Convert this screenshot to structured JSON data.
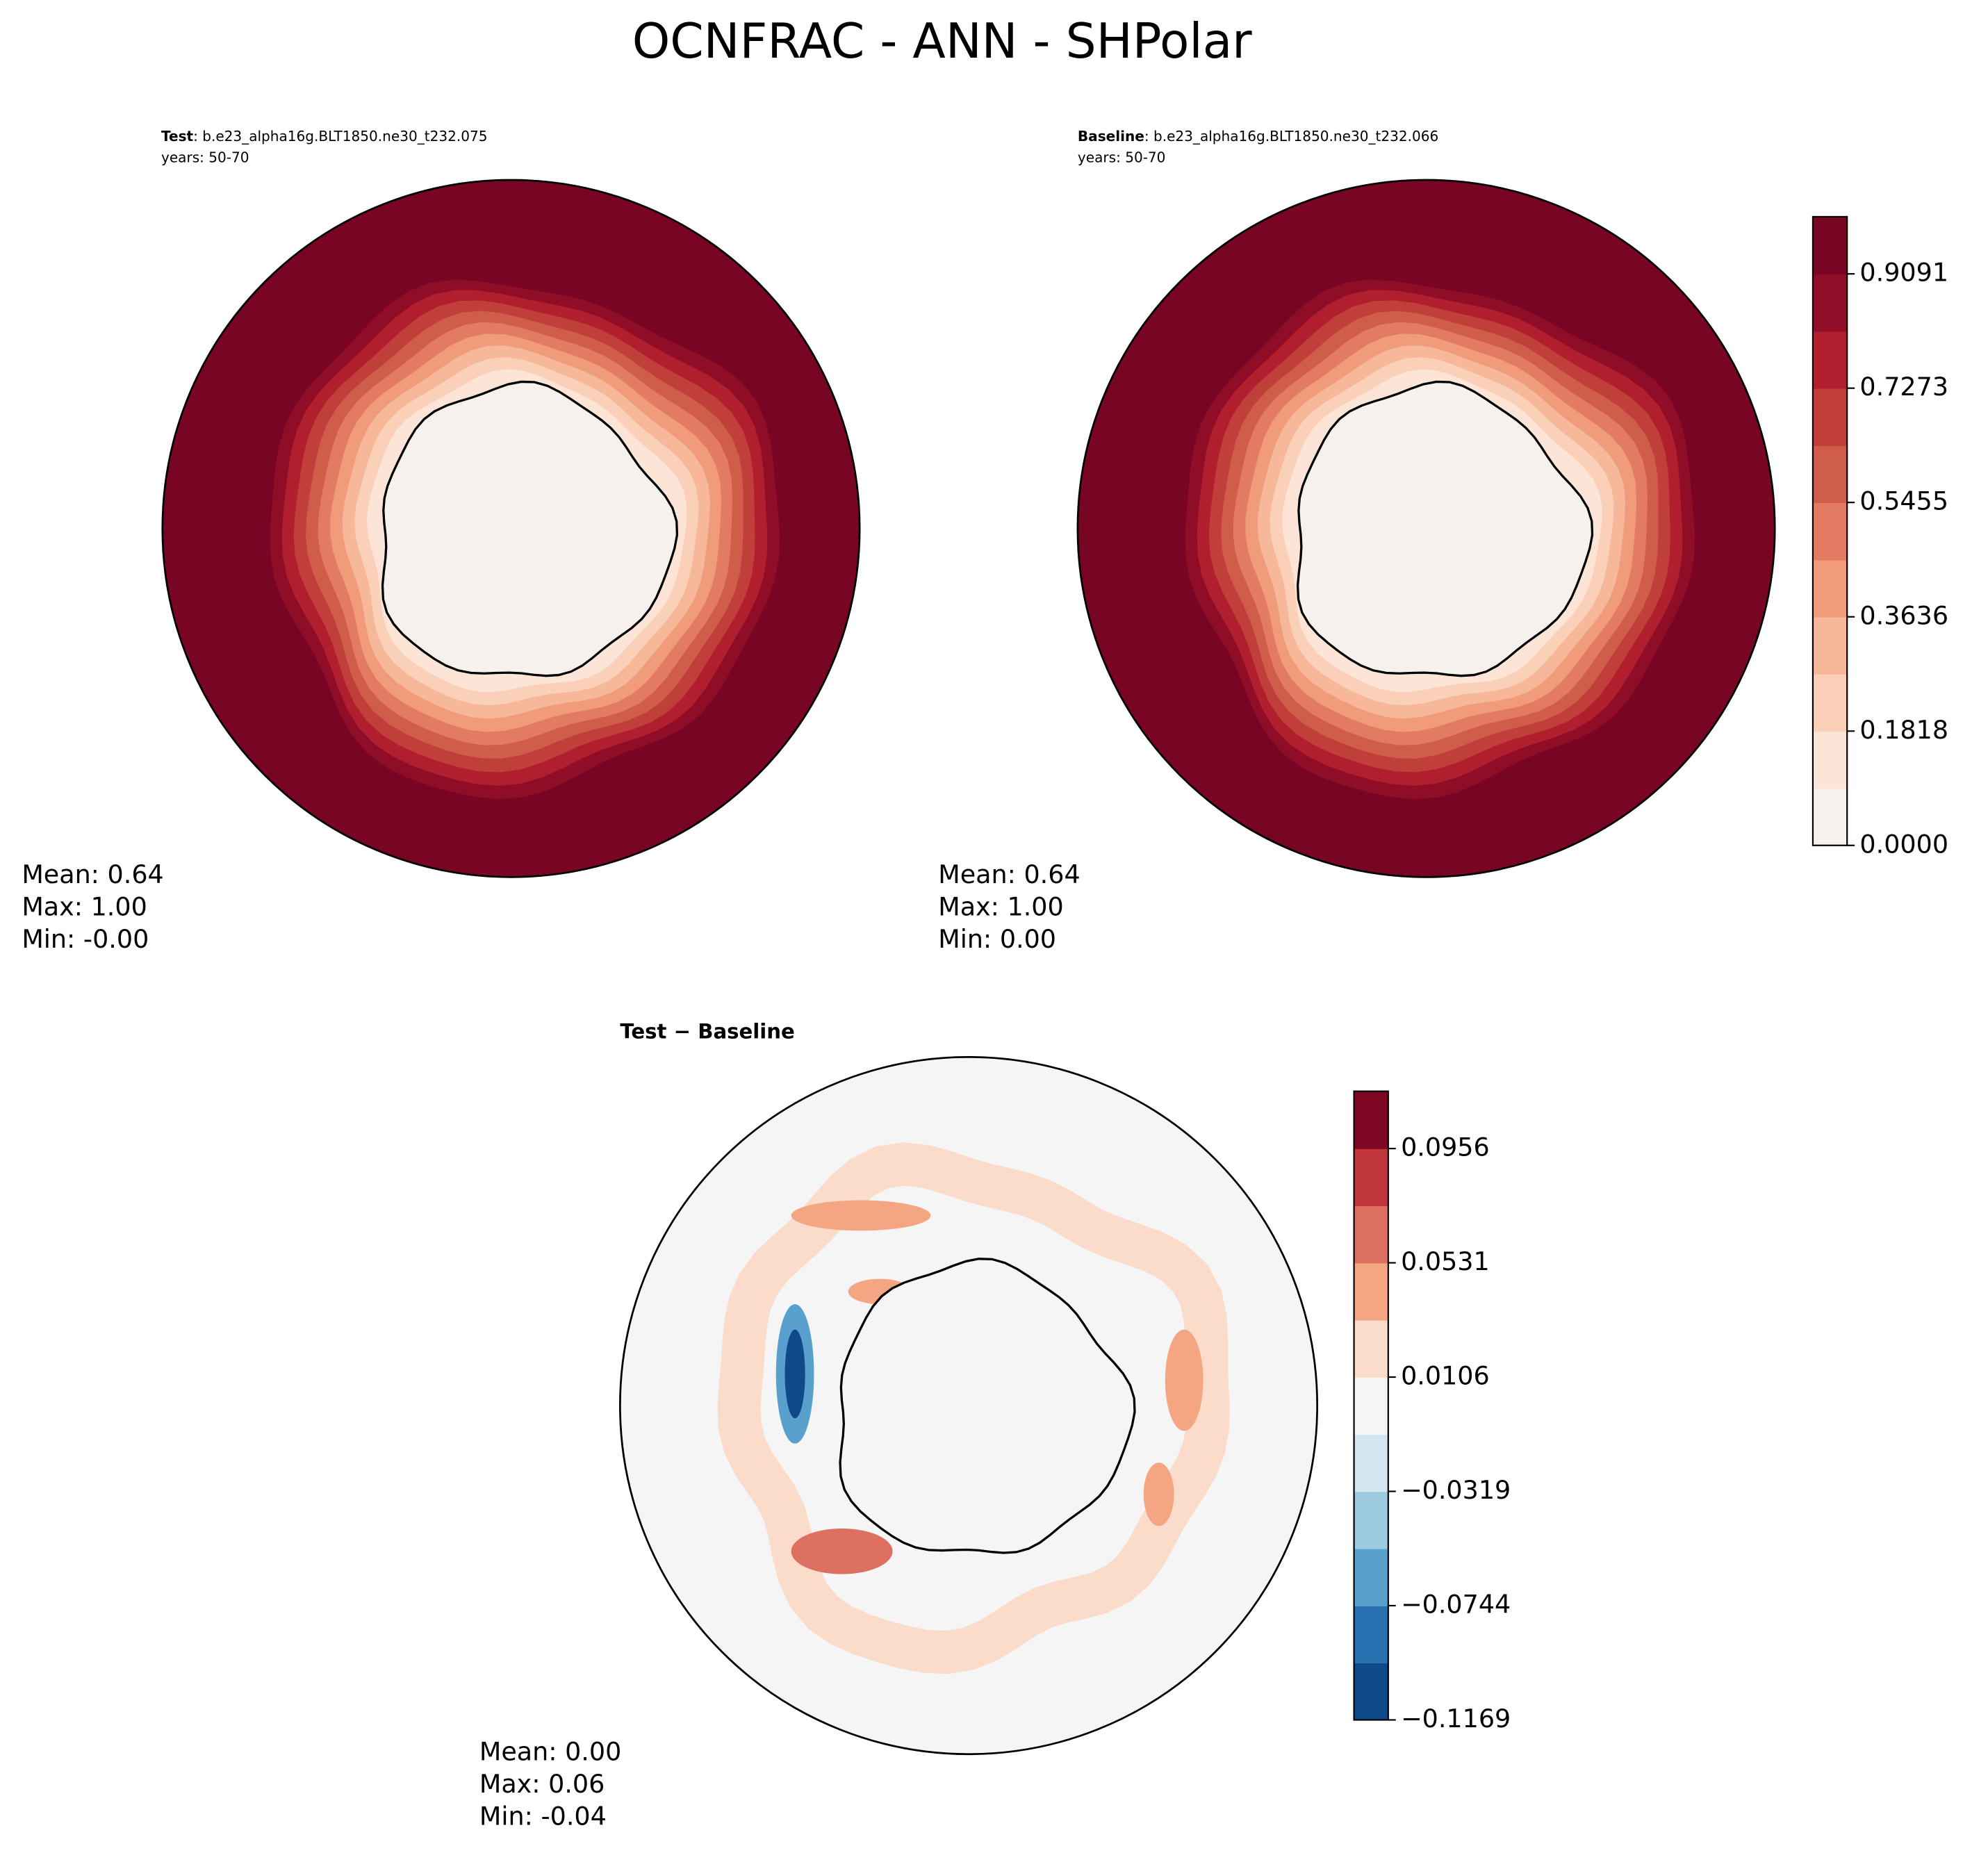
{
  "title": "OCNFRAC - ANN - SHPolar",
  "chart_data": [
    {
      "type": "contour-map",
      "label": "Test",
      "case": ": b.e23_alpha16g.BLT1850.ne30_t232.075",
      "years": "years: 50-70",
      "stats": [
        "Mean:  0.64",
        "Max:  1.00",
        "Min: -0.00"
      ],
      "colors": [
        "#f7f1ee",
        "#fce4d6",
        "#fbd0b9",
        "#f7b799",
        "#f09c7b",
        "#e27b62",
        "#d05d4a",
        "#c13f3a",
        "#b11f2e",
        "#8f0d27",
        "#770523"
      ]
    },
    {
      "type": "contour-map",
      "label": "Baseline",
      "case": ": b.e23_alpha16g.BLT1850.ne30_t232.066",
      "years": "years: 50-70",
      "stats": [
        "Mean:  0.64",
        "Max:  1.00",
        "Min:  0.00"
      ],
      "colors": [
        "#f7f1ee",
        "#fce4d6",
        "#fbd0b9",
        "#f7b799",
        "#f09c7b",
        "#e27b62",
        "#d05d4a",
        "#c13f3a",
        "#b11f2e",
        "#8f0d27",
        "#770523"
      ],
      "colorbar": {
        "ylim": [
          0,
          1
        ],
        "yticks": [
          {
            "value": 0,
            "label": "0.0000"
          },
          0.1818,
          0.3636,
          0.5455,
          0.7273,
          0.9091
        ]
      }
    },
    {
      "type": "contour-diff-map",
      "label": "Test − Baseline",
      "stats": [
        "Mean:  0.00",
        "Max:  0.06",
        "Min: -0.04"
      ],
      "colors": [
        "#0d4a87",
        "#2a71b2",
        "#5aa0cd",
        "#9ccae1",
        "#d3e5f0",
        "#f5f5f5",
        "#fbdbc9",
        "#f4a582",
        "#dd7060",
        "#c0363c",
        "#7e0823"
      ],
      "colorbar": {
        "ylim": [
          -0.1169,
          0.1169
        ],
        "yticks": [
          {
            "value": -0.1169,
            "label": "−0.1169"
          },
          {
            "value": -0.0744,
            "label": "−0.0744"
          },
          {
            "value": -0.0319,
            "label": "−0.0319"
          },
          0.0106,
          0.0531,
          0.0956
        ]
      }
    }
  ]
}
